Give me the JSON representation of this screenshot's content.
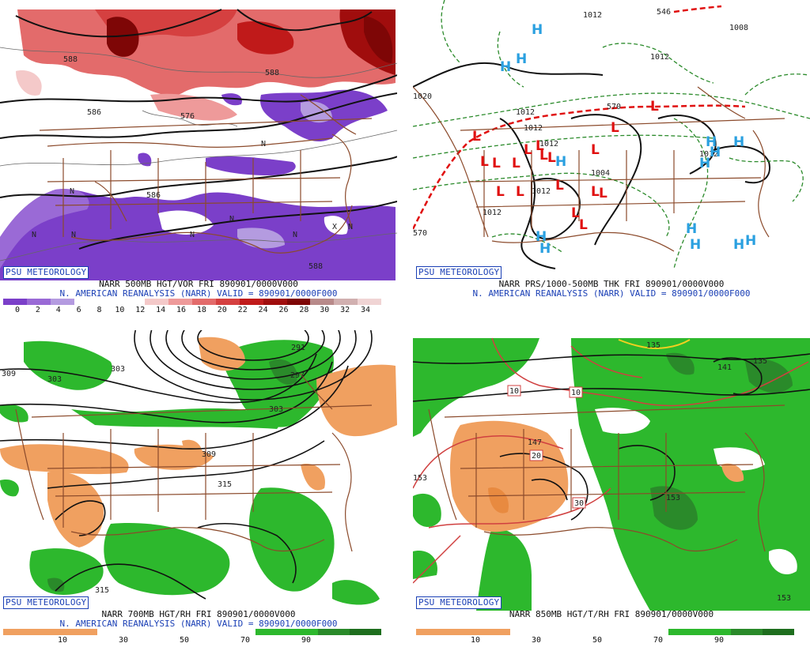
{
  "panels": [
    {
      "badge": "PSU METEOROLOGY",
      "caption_line1": "NARR 500MB HGT/VOR FRI 890901/0000V000",
      "caption_line2": "N. AMERICAN REANALYSIS (NARR) VALID = 890901/0000F000",
      "colorbar": {
        "colors": [
          "#7b3fc9",
          "#9a6ad6",
          "#b49be0",
          "#ffffff",
          "#ffffff",
          "#ffffff",
          "#f4c9c9",
          "#ee9a9a",
          "#e36b6b",
          "#d54040",
          "#c01a1a",
          "#a00d0d",
          "#7e0606",
          "#b88a8a",
          "#d1b0b0",
          "#f0d4d4"
        ],
        "ticks": [
          "0",
          "2",
          "4",
          "6",
          "8",
          "10",
          "12",
          "14",
          "16",
          "18",
          "20",
          "22",
          "24",
          "26",
          "28",
          "30",
          "32",
          "34"
        ]
      },
      "labels": [
        "588",
        "588",
        "586",
        "576",
        "586",
        "588",
        "N",
        "N",
        "N",
        "N",
        "N",
        "N",
        "N",
        "N",
        "X"
      ]
    },
    {
      "badge": "PSU METEOROLOGY",
      "caption_line1": "NARR PRS/1000-500MB THK FRI 890901/0000V000",
      "caption_line2": "N. AMERICAN REANALYSIS (NARR) VALID = 890901/0000F000",
      "labels": [
        "1012",
        "1012",
        "1008",
        "1020",
        "1012",
        "1012",
        "1012",
        "1004",
        "1012",
        "1012",
        "1012",
        "570",
        "570",
        "546"
      ],
      "highs": [
        "H",
        "H",
        "H",
        "H",
        "H",
        "H",
        "H",
        "H",
        "H",
        "H",
        "H",
        "H",
        "H",
        "H"
      ],
      "lows": [
        "L",
        "L",
        "L",
        "L",
        "L",
        "L",
        "L",
        "L",
        "L",
        "L",
        "L",
        "L",
        "L",
        "L",
        "L",
        "L",
        "L",
        "L"
      ]
    },
    {
      "badge": "PSU METEOROLOGY",
      "caption_line1": "NARR 700MB HGT/RH FRI 890901/0000V000",
      "caption_line2": "N. AMERICAN REANALYSIS (NARR) VALID = 890901/0000F000",
      "colorbar": {
        "colors": [
          "#f0a060",
          "#f0a060",
          "#f0a060",
          "#ffffff",
          "#ffffff",
          "#ffffff",
          "#ffffff",
          "#ffffff",
          "#2db82d",
          "#2db82d",
          "#2a8a2a",
          "#1e6e1e"
        ],
        "ticks": [
          "10",
          "30",
          "50",
          "70",
          "90"
        ]
      },
      "labels": [
        "309",
        "303",
        "303",
        "291",
        "297",
        "303",
        "309",
        "315",
        "315"
      ]
    },
    {
      "badge": "PSU METEOROLOGY",
      "caption_line1": "NARR 850MB HGT/T/RH FRI 890901/0000V000",
      "caption_line2": "",
      "colorbar": {
        "colors": [
          "#f0a060",
          "#f0a060",
          "#f0a060",
          "#ffffff",
          "#ffffff",
          "#ffffff",
          "#ffffff",
          "#ffffff",
          "#2db82d",
          "#2db82d",
          "#2a8a2a",
          "#1e6e1e"
        ],
        "ticks": [
          "10",
          "30",
          "50",
          "70",
          "90"
        ]
      },
      "labels": [
        "135",
        "141",
        "135",
        "147",
        "153",
        "153",
        "153"
      ],
      "temp_boxes": [
        "10",
        "10",
        "20",
        "30"
      ]
    }
  ]
}
